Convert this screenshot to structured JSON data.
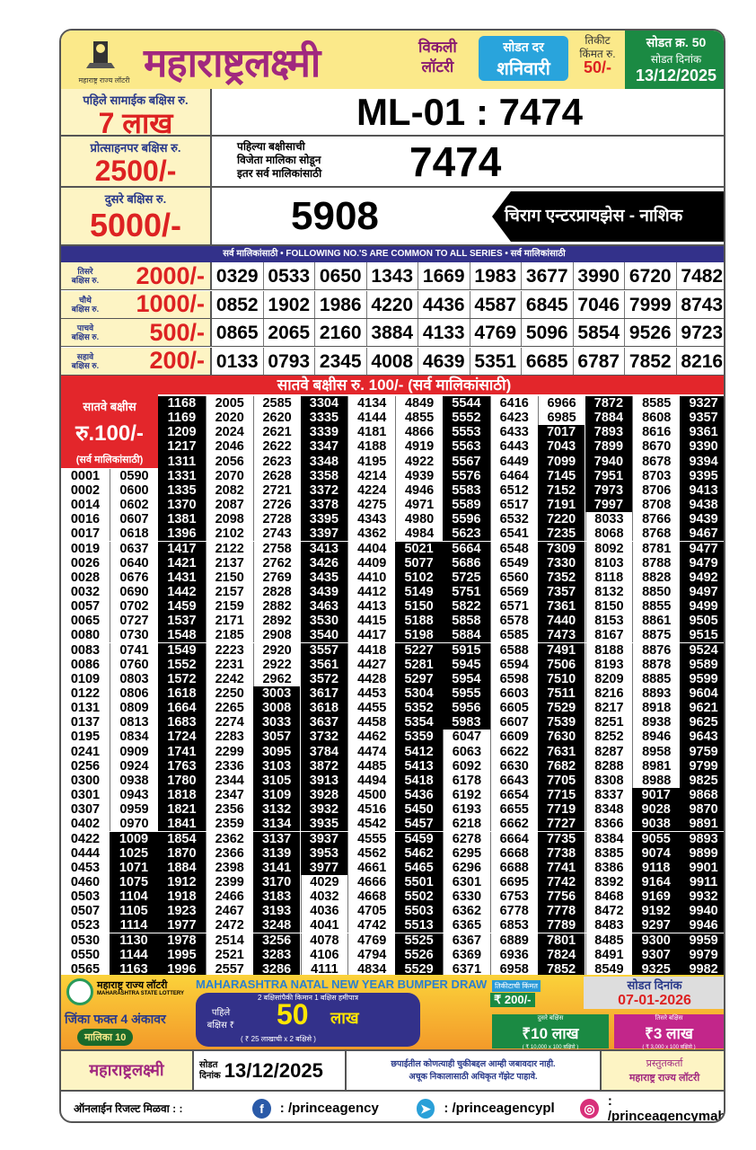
{
  "header": {
    "brand": "महाराष्ट्रलक्ष्मी",
    "logo_caption": "महाराष्ट्र राज्य लॉटरी",
    "weekly_1": "विकली",
    "weekly_2": "लॉटरी",
    "draw_day_label": "सोडत दर",
    "draw_day": "शनिवारी",
    "ticket_price_label_1": "तिकीट",
    "ticket_price_label_2": "किंमत रु.",
    "ticket_price": "50/-",
    "draw_no_label": "सोडत क्र. 50",
    "draw_date_label": "सोडत दिनांक",
    "draw_date": "13/12/2025"
  },
  "first_prize": {
    "label": "पहिले सामाईक बक्षिस रु.",
    "amount": "7 लाख",
    "result": "ML-01 : 7474"
  },
  "consolation": {
    "label": "प्रोत्साहनपर बक्षिस रु.",
    "amount": "2500/-",
    "note_1": "पहिल्या बक्षीसाची",
    "note_2": "विजेता मालिका सोडून",
    "note_3": "इतर सर्व मालिकांसाठी",
    "result": "7474"
  },
  "second_prize": {
    "label": "दुसरे बक्षिस रु.",
    "amount": "5000/-",
    "result": "5908",
    "agent": "चिराग एन्टरप्रायझेस - नाशिक"
  },
  "common_band": "सर्व मालिकांसाठी  •  FOLLOWING NO.'S ARE COMMON TO ALL SERIES  •  सर्व मालिकांसाठी",
  "prizes": [
    {
      "label_1": "तिसरे",
      "label_2": "बक्षिस रु.",
      "amount": "2000/-",
      "numbers": [
        "0329",
        "0533",
        "0650",
        "1343",
        "1669",
        "1983",
        "3677",
        "3990",
        "6720",
        "7482"
      ]
    },
    {
      "label_1": "चौथे",
      "label_2": "बक्षिस रु.",
      "amount": "1000/-",
      "numbers": [
        "0852",
        "1902",
        "1986",
        "4220",
        "4436",
        "4587",
        "6845",
        "7046",
        "7999",
        "8743"
      ]
    },
    {
      "label_1": "पाचवे",
      "label_2": "बक्षिस रु.",
      "amount": "500/-",
      "numbers": [
        "0865",
        "2065",
        "2160",
        "3884",
        "4133",
        "4769",
        "5096",
        "5854",
        "9526",
        "9723"
      ]
    },
    {
      "label_1": "सहावे",
      "label_2": "बक्षिस रु.",
      "amount": "200/-",
      "numbers": [
        "0133",
        "0793",
        "2345",
        "4008",
        "4639",
        "5351",
        "6685",
        "6787",
        "7852",
        "8216"
      ]
    }
  ],
  "seventh": {
    "band": "सातवे बक्षीस रु. 100/-  (सर्व मालिकांसाठी)",
    "label": "सातवे बक्षीस",
    "amount": "रु.100/-",
    "note": "(सर्व मालिकांसाठी)",
    "columns": [
      [
        "0001",
        "0002",
        "0014",
        "0016",
        "0017",
        "0019",
        "0026",
        "0028",
        "0032",
        "0057",
        "0065",
        "0080",
        "0083",
        "0086",
        "0109",
        "0122",
        "0131",
        "0137",
        "0195",
        "0241",
        "0256",
        "0300",
        "0301",
        "0307",
        "0402",
        "0422",
        "0444",
        "0453",
        "0460",
        "0503",
        "0507",
        "0523",
        "0530",
        "0550",
        "0565"
      ],
      [
        "0590",
        "0600",
        "0602",
        "0607",
        "0618",
        "0637",
        "0640",
        "0676",
        "0690",
        "0702",
        "0727",
        "0730",
        "0741",
        "0760",
        "0803",
        "0806",
        "0809",
        "0813",
        "0834",
        "0909",
        "0924",
        "0938",
        "0943",
        "0959",
        "0970",
        "1009",
        "1025",
        "1071",
        "1075",
        "1104",
        "1105",
        "1114",
        "1130",
        "1144",
        "1163"
      ],
      [
        "1168",
        "1169",
        "1209",
        "1217",
        "1311",
        "1331",
        "1335",
        "1370",
        "1381",
        "1396",
        "1417",
        "1421",
        "1431",
        "1442",
        "1459",
        "1537",
        "1548",
        "1549",
        "1552",
        "1572",
        "1618",
        "1664",
        "1683",
        "1724",
        "1741",
        "1763",
        "1780",
        "1818",
        "1821",
        "1841",
        "1854",
        "1870",
        "1884",
        "1912",
        "1918",
        "1923",
        "1977",
        "1978",
        "1995",
        "1996"
      ],
      [
        "2005",
        "2020",
        "2024",
        "2046",
        "2056",
        "2070",
        "2082",
        "2087",
        "2098",
        "2102",
        "2122",
        "2137",
        "2150",
        "2157",
        "2159",
        "2171",
        "2185",
        "2223",
        "2231",
        "2242",
        "2250",
        "2265",
        "2274",
        "2283",
        "2299",
        "2336",
        "2344",
        "2347",
        "2356",
        "2359",
        "2362",
        "2366",
        "2398",
        "2399",
        "2466",
        "2467",
        "2472",
        "2514",
        "2521",
        "2557"
      ],
      [
        "2585",
        "2620",
        "2621",
        "2622",
        "2623",
        "2628",
        "2721",
        "2726",
        "2728",
        "2743",
        "2758",
        "2762",
        "2769",
        "2828",
        "2882",
        "2892",
        "2908",
        "2920",
        "2922",
        "2962",
        "3003",
        "3008",
        "3033",
        "3057",
        "3095",
        "3103",
        "3105",
        "3109",
        "3132",
        "3134",
        "3137",
        "3139",
        "3141",
        "3170",
        "3183",
        "3193",
        "3248",
        "3256",
        "3283",
        "3286"
      ],
      [
        "3304",
        "3335",
        "3339",
        "3347",
        "3348",
        "3358",
        "3372",
        "3378",
        "3395",
        "3397",
        "3413",
        "3426",
        "3435",
        "3439",
        "3463",
        "3530",
        "3540",
        "3557",
        "3561",
        "3572",
        "3617",
        "3618",
        "3637",
        "3732",
        "3784",
        "3872",
        "3913",
        "3928",
        "3932",
        "3935",
        "3937",
        "3953",
        "3977",
        "4029",
        "4032",
        "4036",
        "4041",
        "4078",
        "4106",
        "4111"
      ],
      [
        "4134",
        "4144",
        "4181",
        "4188",
        "4195",
        "4214",
        "4224",
        "4275",
        "4343",
        "4362",
        "4404",
        "4409",
        "4410",
        "4412",
        "4413",
        "4415",
        "4417",
        "4418",
        "4427",
        "4428",
        "4453",
        "4455",
        "4458",
        "4462",
        "4474",
        "4485",
        "4494",
        "4500",
        "4516",
        "4542",
        "4555",
        "4562",
        "4661",
        "4666",
        "4668",
        "4705",
        "4742",
        "4769",
        "4794",
        "4834"
      ],
      [
        "4849",
        "4855",
        "4866",
        "4919",
        "4922",
        "4939",
        "4946",
        "4971",
        "4980",
        "4984",
        "5021",
        "5077",
        "5102",
        "5149",
        "5150",
        "5188",
        "5198",
        "5227",
        "5281",
        "5297",
        "5304",
        "5352",
        "5354",
        "5359",
        "5412",
        "5413",
        "5418",
        "5436",
        "5450",
        "5457",
        "5459",
        "5462",
        "5465",
        "5501",
        "5502",
        "5503",
        "5513",
        "5525",
        "5526",
        "5529"
      ],
      [
        "5544",
        "5552",
        "5553",
        "5563",
        "5567",
        "5576",
        "5583",
        "5589",
        "5596",
        "5623",
        "5664",
        "5686",
        "5725",
        "5751",
        "5822",
        "5858",
        "5884",
        "5915",
        "5945",
        "5954",
        "5955",
        "5956",
        "5983",
        "6047",
        "6063",
        "6092",
        "6178",
        "6192",
        "6193",
        "6218",
        "6278",
        "6295",
        "6296",
        "6301",
        "6330",
        "6362",
        "6365",
        "6367",
        "6369",
        "6371"
      ],
      [
        "6416",
        "6423",
        "6433",
        "6443",
        "6449",
        "6464",
        "6512",
        "6517",
        "6532",
        "6541",
        "6548",
        "6549",
        "6560",
        "6569",
        "6571",
        "6578",
        "6585",
        "6588",
        "6594",
        "6598",
        "6603",
        "6605",
        "6607",
        "6609",
        "6622",
        "6630",
        "6643",
        "6654",
        "6655",
        "6662",
        "6664",
        "6668",
        "6688",
        "6695",
        "6753",
        "6778",
        "6853",
        "6889",
        "6936",
        "6958"
      ],
      [
        "6966",
        "6985",
        "7017",
        "7043",
        "7099",
        "7145",
        "7152",
        "7191",
        "7220",
        "7235",
        "7309",
        "7330",
        "7352",
        "7357",
        "7361",
        "7440",
        "7473",
        "7491",
        "7506",
        "7510",
        "7511",
        "7529",
        "7539",
        "7630",
        "7631",
        "7682",
        "7705",
        "7715",
        "7719",
        "7727",
        "7735",
        "7738",
        "7741",
        "7742",
        "7756",
        "7778",
        "7789",
        "7801",
        "7824",
        "7852"
      ],
      [
        "7872",
        "7884",
        "7893",
        "7899",
        "7940",
        "7951",
        "7973",
        "7997",
        "8033",
        "8068",
        "8092",
        "8103",
        "8118",
        "8132",
        "8150",
        "8153",
        "8167",
        "8188",
        "8193",
        "8209",
        "8216",
        "8217",
        "8251",
        "8252",
        "8287",
        "8288",
        "8308",
        "8337",
        "8348",
        "8366",
        "8384",
        "8385",
        "8386",
        "8392",
        "8468",
        "8472",
        "8483",
        "8485",
        "8491",
        "8549"
      ],
      [
        "8585",
        "8608",
        "8616",
        "8670",
        "8678",
        "8703",
        "8706",
        "8708",
        "8766",
        "8768",
        "8781",
        "8788",
        "8828",
        "8850",
        "8855",
        "8861",
        "8875",
        "8876",
        "8878",
        "8885",
        "8893",
        "8918",
        "8938",
        "8946",
        "8958",
        "8981",
        "8988",
        "9017",
        "9028",
        "9038",
        "9055",
        "9074",
        "9118",
        "9164",
        "9169",
        "9192",
        "9297",
        "9300",
        "9307",
        "9325"
      ],
      [
        "9327",
        "9357",
        "9361",
        "9390",
        "9394",
        "9395",
        "9413",
        "9438",
        "9439",
        "9467",
        "9477",
        "9479",
        "9492",
        "9497",
        "9499",
        "9505",
        "9515",
        "9524",
        "9589",
        "9599",
        "9604",
        "9621",
        "9625",
        "9643",
        "9759",
        "9799",
        "9825",
        "9868",
        "9870",
        "9891",
        "9893",
        "9899",
        "9901",
        "9911",
        "9932",
        "9940",
        "9946",
        "9959",
        "9979",
        "9982"
      ]
    ]
  },
  "ad": {
    "issuer": "महाराष्ट्र राज्य लॉटरी",
    "issuer_en": "MAHARASHTRA STATE LOTTERY",
    "title": "MAHARASHTRA NATAL NEW YEAR BUMPER DRAW",
    "win_on": "जिंका फक्त 4 अंकावर",
    "series": "मालिका 10",
    "guarantee": "2 बक्षिसांपैकी किमान 1 बक्षिस हमीपात्र",
    "first_label": "पहिले बक्षिस ₹",
    "first_amount": "50",
    "first_unit": "लाख",
    "first_note": "( ₹ 25 लाखाची x 2 बक्षिसे )",
    "price_label": "तिकीटाची किंमत",
    "price": "₹ 200/-",
    "date_label": "सोडत दिनांक",
    "date": "07-01-2026",
    "second_label": "दुसरे बक्षिस",
    "second_amount": "₹10 लाख",
    "second_note": "( ₹ 10,000 x 100 बक्षिसे )",
    "third_label": "तिसरे बक्षिस",
    "third_amount": "₹3 लाख",
    "third_note": "( ₹ 3,000 x 100 बक्षिसे )"
  },
  "footer": {
    "brand": "महाराष्ट्रलक्ष्मी",
    "date_label_1": "सोडत",
    "date_label_2": "दिनांक",
    "date": "13/12/2025",
    "disclaimer_1": "छपाईतील कोणत्याही चुकीबद्दल आम्ही जबावदार नाही.",
    "disclaimer_2": "अचूक निकालासाठी अधिकृत गॅझेट पाहावे.",
    "presenter_label": "प्रस्तुतकर्ता",
    "presenter": "महाराष्ट्र राज्य लॉटरी"
  },
  "social": {
    "label": "ऑनलाईन रिजल्ट मिळवा : :",
    "facebook": ": /princeagency",
    "telegram": ": /princeagencypl",
    "instagram": ": /princeagencymah"
  },
  "colors": {
    "brand": "#a1287f",
    "prize_red": "#e3262b",
    "band_blue": "#33318a",
    "label_bg": "#fdf4c4",
    "header_bg": "#fbe98a",
    "draw_green": "#1b8a43"
  }
}
